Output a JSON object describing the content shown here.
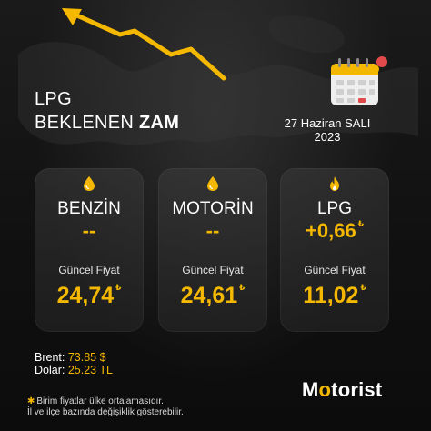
{
  "header": {
    "line1": "LPG",
    "line2_regular": "BEKLENEN",
    "line2_bold": "ZAM"
  },
  "date": {
    "line1": "27 Haziran SALI",
    "line2": "2023"
  },
  "cards": [
    {
      "name": "BENZİN",
      "change": "--",
      "change_unit": "",
      "label": "Güncel Fiyat",
      "price": "24,74",
      "price_unit": "₺",
      "icon": "fuel-drop-icon"
    },
    {
      "name": "MOTORİN",
      "change": "--",
      "change_unit": "",
      "label": "Güncel Fiyat",
      "price": "24,61",
      "price_unit": "₺",
      "icon": "fuel-drop-icon"
    },
    {
      "name": "LPG",
      "change": "+0,66",
      "change_unit": "₺",
      "label": "Güncel Fiyat",
      "price": "11,02",
      "price_unit": "₺",
      "icon": "flame-icon"
    }
  ],
  "extra": {
    "brent_label": "Brent:",
    "brent_value": "73.85 $",
    "dolar_label": "Dolar:",
    "dolar_value": "25.23 TL"
  },
  "note": {
    "line1": "Birim fiyatlar ülke ortalamasıdır.",
    "line2": "İl ve ilçe bazında değişiklik gösterebilir."
  },
  "logo": {
    "text": "Motorist"
  },
  "colors": {
    "accent": "#f5b800",
    "background": "#111111"
  }
}
